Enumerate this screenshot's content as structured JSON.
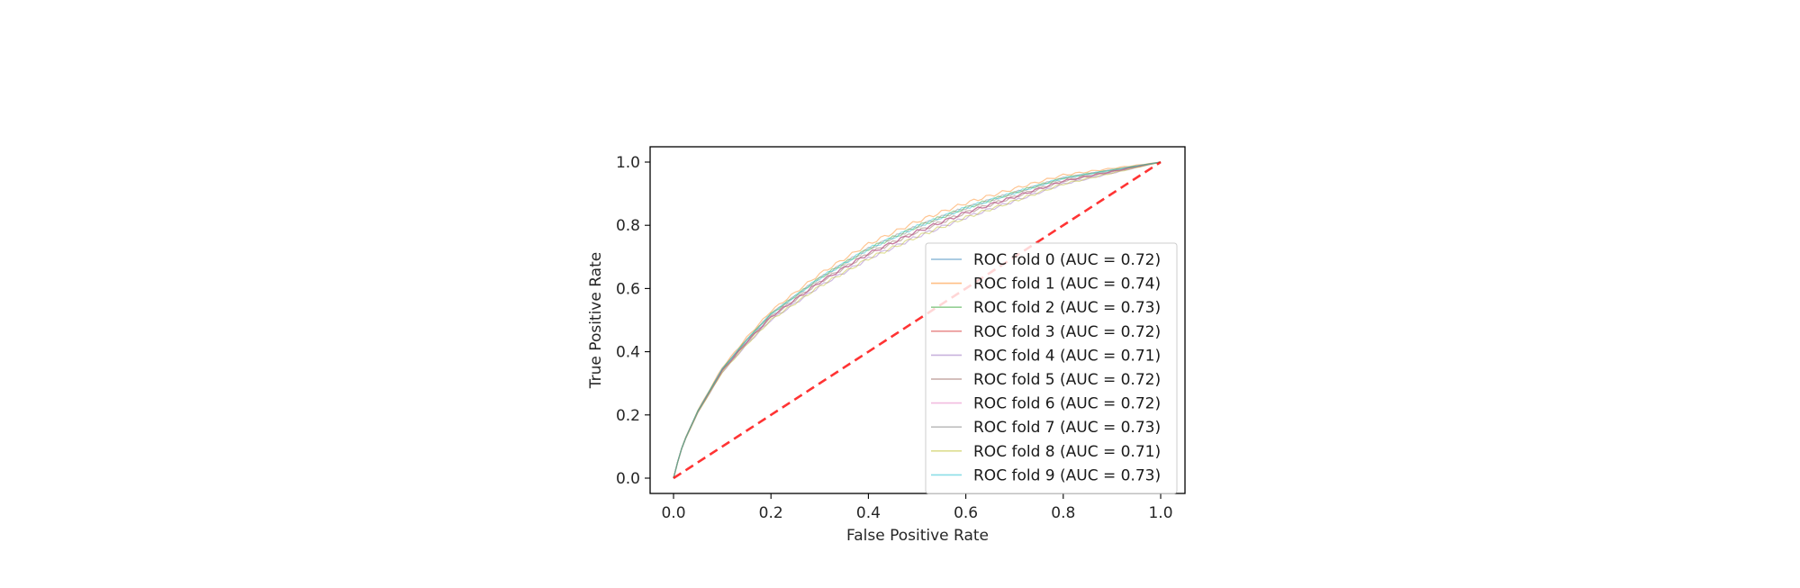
{
  "chart_data": {
    "type": "line",
    "title": "",
    "xlabel": "False Positive Rate",
    "ylabel": "True Positive Rate",
    "xlim": [
      -0.05,
      1.05
    ],
    "ylim": [
      -0.05,
      1.05
    ],
    "xticks": [
      "0.0",
      "0.2",
      "0.4",
      "0.6",
      "0.8",
      "1.0"
    ],
    "yticks": [
      "0.0",
      "0.2",
      "0.4",
      "0.6",
      "0.8",
      "1.0"
    ],
    "grid": false,
    "legend_position": "lower-right",
    "series": [
      {
        "name": "ROC fold 0 (AUC = 0.72)",
        "color": "#1f77b4",
        "auc": 0.72
      },
      {
        "name": "ROC fold 1 (AUC = 0.74)",
        "color": "#ff7f0e",
        "auc": 0.74
      },
      {
        "name": "ROC fold 2 (AUC = 0.73)",
        "color": "#2ca02c",
        "auc": 0.73
      },
      {
        "name": "ROC fold 3 (AUC = 0.72)",
        "color": "#d62728",
        "auc": 0.72
      },
      {
        "name": "ROC fold 4 (AUC = 0.71)",
        "color": "#9467bd",
        "auc": 0.71
      },
      {
        "name": "ROC fold 5 (AUC = 0.72)",
        "color": "#8c564b",
        "auc": 0.72
      },
      {
        "name": "ROC fold 6 (AUC = 0.72)",
        "color": "#e377c2",
        "auc": 0.72
      },
      {
        "name": "ROC fold 7 (AUC = 0.73)",
        "color": "#7f7f7f",
        "auc": 0.73
      },
      {
        "name": "ROC fold 8 (AUC = 0.71)",
        "color": "#bcbd22",
        "auc": 0.71
      },
      {
        "name": "ROC fold 9 (AUC = 0.73)",
        "color": "#17becf",
        "auc": 0.73
      }
    ],
    "roc_x": [
      0,
      0.01,
      0.02,
      0.05,
      0.1,
      0.15,
      0.2,
      0.3,
      0.4,
      0.5,
      0.6,
      0.7,
      0.8,
      0.9,
      1.0
    ],
    "roc_y": [
      0,
      0.06,
      0.11,
      0.21,
      0.34,
      0.43,
      0.51,
      0.62,
      0.71,
      0.78,
      0.84,
      0.89,
      0.94,
      0.97,
      1.0
    ],
    "chance_line": {
      "x": [
        0,
        1
      ],
      "y": [
        0,
        1
      ],
      "color": "#ff0000",
      "style": "dashed"
    }
  }
}
